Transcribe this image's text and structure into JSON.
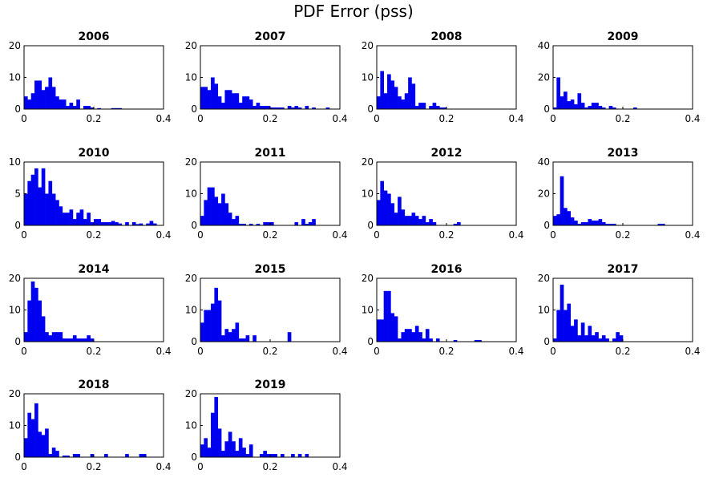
{
  "figure": {
    "title": "PDF Error (pss)"
  },
  "style": {
    "bar_color": "#0000f0",
    "axis_color": "#000000"
  },
  "chart_data": [
    {
      "type": "bar",
      "title": "2006",
      "xlim": [
        0,
        0.4
      ],
      "ylim": [
        0,
        20
      ],
      "xticks": [
        "0",
        "0.2",
        "0.4"
      ],
      "yticks": [
        "0",
        "10",
        "20"
      ],
      "bin_width": 0.01,
      "values": [
        4,
        3,
        5,
        9,
        9,
        6,
        7,
        10,
        7,
        4,
        3,
        3,
        1,
        2,
        1,
        3,
        0,
        1,
        1,
        0.5,
        0,
        0.3,
        0,
        0,
        0,
        0.3,
        0.3,
        0.3,
        0,
        0,
        0,
        0,
        0,
        0,
        0,
        0,
        0,
        0,
        0,
        0
      ]
    },
    {
      "type": "bar",
      "title": "2007",
      "xlim": [
        0,
        0.4
      ],
      "ylim": [
        0,
        20
      ],
      "xticks": [
        "0",
        "0.2",
        "0.4"
      ],
      "yticks": [
        "0",
        "10",
        "20"
      ],
      "bin_width": 0.01,
      "values": [
        7,
        7,
        6,
        10,
        8,
        4,
        2,
        6,
        6,
        5,
        5,
        2,
        4,
        4,
        3,
        1,
        2,
        1,
        1,
        1,
        0.5,
        0.5,
        0.5,
        0.5,
        0,
        1,
        0.5,
        1,
        0.5,
        0,
        1,
        0,
        0.5,
        0,
        0,
        0,
        0.5,
        0,
        0,
        0
      ]
    },
    {
      "type": "bar",
      "title": "2008",
      "xlim": [
        0,
        0.4
      ],
      "ylim": [
        0,
        20
      ],
      "xticks": [
        "0",
        "0.2",
        "0.4"
      ],
      "yticks": [
        "0",
        "10",
        "20"
      ],
      "bin_width": 0.01,
      "values": [
        4,
        12,
        5,
        11,
        9,
        7,
        4,
        3,
        5,
        10,
        8,
        1,
        2,
        2,
        0,
        1,
        2,
        1,
        0.5,
        0.5,
        0,
        0,
        0,
        0,
        0,
        0,
        0,
        0,
        0,
        0,
        0,
        0,
        0,
        0,
        0,
        0,
        0,
        0,
        0,
        0
      ]
    },
    {
      "type": "bar",
      "title": "2009",
      "xlim": [
        0,
        0.4
      ],
      "ylim": [
        0,
        40
      ],
      "xticks": [
        "0",
        "0.2",
        "0.4"
      ],
      "yticks": [
        "0",
        "20",
        "40"
      ],
      "bin_width": 0.01,
      "values": [
        1,
        20,
        8,
        11,
        5,
        6,
        3,
        10,
        4,
        1,
        2,
        4,
        4,
        2,
        1,
        0,
        2,
        1,
        0,
        0,
        0,
        0,
        0,
        1,
        0,
        0,
        0,
        0,
        0,
        0,
        0,
        0,
        0,
        0,
        0,
        0,
        0,
        0,
        0,
        0
      ]
    },
    {
      "type": "bar",
      "title": "2010",
      "xlim": [
        0,
        0.4
      ],
      "ylim": [
        0,
        10
      ],
      "xticks": [
        "0",
        "0.2",
        "0.4"
      ],
      "yticks": [
        "0",
        "5",
        "10"
      ],
      "bin_width": 0.01,
      "values": [
        5,
        7,
        8,
        9,
        6,
        9,
        5,
        7,
        5,
        4,
        3,
        2,
        2,
        2.5,
        1,
        2,
        2.5,
        1,
        2,
        0.5,
        1,
        1,
        0.5,
        0.5,
        0.5,
        0.7,
        0.5,
        0.3,
        0,
        0.5,
        0,
        0.5,
        0.2,
        0.3,
        0,
        0.3,
        0.7,
        0.3,
        0,
        0
      ]
    },
    {
      "type": "bar",
      "title": "2011",
      "xlim": [
        0,
        0.4
      ],
      "ylim": [
        0,
        20
      ],
      "xticks": [
        "0",
        "0.2",
        "0.4"
      ],
      "yticks": [
        "0",
        "10",
        "20"
      ],
      "bin_width": 0.01,
      "values": [
        3,
        8,
        12,
        12,
        9,
        7,
        10,
        7,
        4,
        2,
        3,
        0.5,
        0.5,
        0,
        0.5,
        0,
        0.5,
        0,
        1,
        1,
        1,
        0,
        0,
        0,
        0,
        0,
        0,
        1,
        0,
        2,
        0.5,
        1,
        2,
        0,
        0,
        0,
        0,
        0,
        0,
        0
      ]
    },
    {
      "type": "bar",
      "title": "2012",
      "xlim": [
        0,
        0.4
      ],
      "ylim": [
        0,
        20
      ],
      "xticks": [
        "0",
        "0.2",
        "0.4"
      ],
      "yticks": [
        "0",
        "10",
        "20"
      ],
      "bin_width": 0.01,
      "values": [
        8,
        14,
        11,
        10,
        7,
        4,
        9,
        5,
        3,
        3,
        4,
        3,
        2,
        3,
        1,
        2,
        1,
        0,
        0,
        0,
        0,
        0,
        0.5,
        1,
        0,
        0,
        0,
        0,
        0,
        0,
        0,
        0,
        0,
        0,
        0,
        0,
        0,
        0,
        0,
        0
      ]
    },
    {
      "type": "bar",
      "title": "2013",
      "xlim": [
        0,
        0.4
      ],
      "ylim": [
        0,
        40
      ],
      "xticks": [
        "0",
        "0.2",
        "0.4"
      ],
      "yticks": [
        "0",
        "20",
        "40"
      ],
      "bin_width": 0.01,
      "values": [
        6,
        7,
        31,
        11,
        9,
        5,
        3,
        1,
        2,
        2,
        4,
        3,
        3,
        4,
        2,
        1,
        1,
        1,
        0,
        0,
        0,
        0,
        0,
        0,
        0,
        0,
        0,
        0,
        0,
        0,
        1,
        1,
        0,
        0,
        0,
        0,
        0,
        0,
        0,
        0
      ]
    },
    {
      "type": "bar",
      "title": "2014",
      "xlim": [
        0,
        0.4
      ],
      "ylim": [
        0,
        20
      ],
      "xticks": [
        "0",
        "0.2",
        "0.4"
      ],
      "yticks": [
        "0",
        "10",
        "20"
      ],
      "bin_width": 0.01,
      "values": [
        3,
        13,
        19,
        17,
        13,
        8,
        3,
        2,
        3,
        3,
        3,
        1,
        1,
        1,
        2,
        1,
        1,
        1,
        2,
        1,
        0,
        0,
        0,
        0,
        0,
        0,
        0,
        0,
        0,
        0,
        0,
        0,
        0,
        0,
        0,
        0,
        0,
        0,
        0,
        0
      ]
    },
    {
      "type": "bar",
      "title": "2015",
      "xlim": [
        0,
        0.4
      ],
      "ylim": [
        0,
        20
      ],
      "xticks": [
        "0",
        "0.2",
        "0.4"
      ],
      "yticks": [
        "0",
        "10",
        "20"
      ],
      "bin_width": 0.01,
      "values": [
        6,
        10,
        10,
        12,
        17,
        13,
        2,
        4,
        3,
        4,
        6,
        1,
        1,
        2,
        0,
        2,
        0,
        0,
        0,
        0,
        0,
        0,
        0,
        0,
        0,
        3,
        0,
        0,
        0,
        0,
        0,
        0,
        0,
        0,
        0,
        0,
        0,
        0,
        0,
        0
      ]
    },
    {
      "type": "bar",
      "title": "2016",
      "xlim": [
        0,
        0.4
      ],
      "ylim": [
        0,
        20
      ],
      "xticks": [
        "0",
        "0.2",
        "0.4"
      ],
      "yticks": [
        "0",
        "10",
        "20"
      ],
      "bin_width": 0.01,
      "values": [
        7,
        7,
        16,
        16,
        9,
        8,
        1,
        3,
        4,
        4,
        3,
        5,
        3,
        1,
        4,
        1,
        0,
        1,
        0,
        0,
        0,
        0,
        0.5,
        0,
        0,
        0,
        0,
        0,
        0.5,
        0.5,
        0,
        0,
        0,
        0,
        0,
        0,
        0,
        0,
        0,
        0
      ]
    },
    {
      "type": "bar",
      "title": "2017",
      "xlim": [
        0,
        0.4
      ],
      "ylim": [
        0,
        20
      ],
      "xticks": [
        "0",
        "0.2",
        "0.4"
      ],
      "yticks": [
        "0",
        "10",
        "20"
      ],
      "bin_width": 0.01,
      "values": [
        1,
        10,
        18,
        10,
        12,
        5,
        7,
        2,
        6,
        2,
        5,
        2,
        3,
        1,
        2,
        1,
        0,
        1,
        3,
        2,
        0,
        0,
        0,
        0,
        0,
        0,
        0,
        0,
        0,
        0,
        0,
        0,
        0,
        0,
        0,
        0,
        0,
        0,
        0,
        0
      ]
    },
    {
      "type": "bar",
      "title": "2018",
      "xlim": [
        0,
        0.4
      ],
      "ylim": [
        0,
        20
      ],
      "xticks": [
        "0",
        "0.2",
        "0.4"
      ],
      "yticks": [
        "0",
        "10",
        "20"
      ],
      "bin_width": 0.01,
      "values": [
        6,
        14,
        12,
        17,
        8,
        7,
        9,
        1,
        3,
        2,
        0,
        0.5,
        0.5,
        0,
        1,
        1,
        0,
        0,
        0,
        1,
        0,
        0,
        0,
        1,
        0,
        0,
        0,
        0,
        0,
        1,
        0,
        0,
        0,
        1,
        1,
        0,
        0,
        0,
        0,
        0
      ]
    },
    {
      "type": "bar",
      "title": "2019",
      "xlim": [
        0,
        0.4
      ],
      "ylim": [
        0,
        20
      ],
      "xticks": [
        "0",
        "0.2",
        "0.4"
      ],
      "yticks": [
        "0",
        "10",
        "20"
      ],
      "bin_width": 0.01,
      "values": [
        4,
        6,
        3,
        14,
        19,
        9,
        2,
        5,
        8,
        5,
        2,
        6,
        3,
        1,
        4,
        0,
        0,
        1,
        2,
        1,
        1,
        1,
        0,
        1,
        0,
        0,
        1,
        0,
        1,
        0,
        1,
        0,
        0,
        0,
        0,
        0,
        0,
        0,
        0,
        0
      ]
    }
  ]
}
